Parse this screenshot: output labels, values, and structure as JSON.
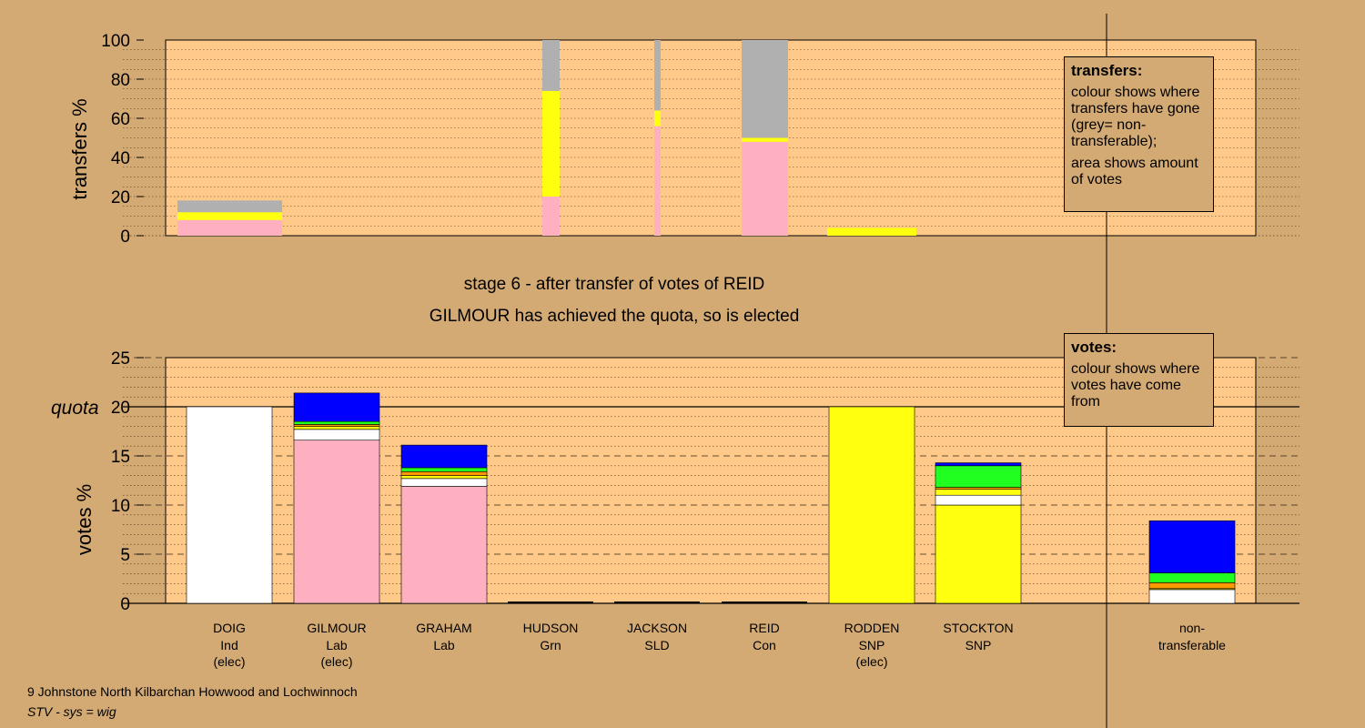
{
  "stage_title": "stage 6 - after transfer of votes of REID",
  "stage_subtitle": "GILMOUR has achieved the quota, so is elected",
  "footer": {
    "ward": "9 Johnstone North Kilbarchan Howwood and Lochwinnoch",
    "system": "STV - sys = wig"
  },
  "legend_transfers": {
    "title": "transfers:",
    "line1": "colour shows where transfers have gone (grey= non-transferable);",
    "line2": "area shows amount of votes"
  },
  "legend_votes": {
    "title": "votes:",
    "line1": "colour shows where votes have come from"
  },
  "colors": {
    "background": "#d4aa74",
    "plot_background": "#ffc98a",
    "Lab": "#ffb0c0",
    "SNP": "#ffff10",
    "Ind": "#ffffff",
    "Con": "#0000ff",
    "Grn": "#20ff20",
    "SLD": "#ff9900",
    "non_transferable": "#b0b0b0"
  },
  "chart_data": [
    {
      "type": "bar",
      "subtype": "stacked-transfers",
      "ylabel": "transfers %",
      "ylim": [
        0,
        100
      ],
      "yticks": [
        0,
        20,
        40,
        60,
        80,
        100
      ],
      "bars": [
        {
          "segments": [
            {
              "party": "Lab",
              "value": 8
            },
            {
              "party": "SNP",
              "value": 4
            },
            {
              "party": "non_transferable",
              "value": 6
            }
          ]
        },
        {
          "segments": [
            {
              "party": "Lab",
              "value": 20
            },
            {
              "party": "SNP",
              "value": 54
            },
            {
              "party": "non_transferable",
              "value": 26
            }
          ]
        },
        {
          "segments": [
            {
              "party": "Lab",
              "value": 56
            },
            {
              "party": "SNP",
              "value": 8
            },
            {
              "party": "non_transferable",
              "value": 36
            }
          ]
        },
        {
          "segments": [
            {
              "party": "Lab",
              "value": 48
            },
            {
              "party": "SNP",
              "value": 2
            },
            {
              "party": "non_transferable",
              "value": 50
            }
          ]
        },
        {
          "segments": [
            {
              "party": "SNP",
              "value": 4
            }
          ]
        }
      ]
    },
    {
      "type": "bar",
      "subtype": "stacked-votes",
      "ylabel": "votes %",
      "quota_label": "quota",
      "quota": 20,
      "ylim": [
        0,
        25
      ],
      "yticks": [
        0,
        5,
        10,
        15,
        20,
        25
      ],
      "candidates": [
        {
          "name": "DOIG",
          "party": "Ind",
          "status": "(elec)",
          "segments": [
            {
              "party": "Ind",
              "value": 20
            }
          ]
        },
        {
          "name": "GILMOUR",
          "party": "Lab",
          "status": "(elec)",
          "segments": [
            {
              "party": "Lab",
              "value": 16.6
            },
            {
              "party": "Ind",
              "value": 1.1
            },
            {
              "party": "SNP",
              "value": 0.3
            },
            {
              "party": "SLD",
              "value": 0.2
            },
            {
              "party": "Grn",
              "value": 0.3
            },
            {
              "party": "Con",
              "value": 2.9
            }
          ]
        },
        {
          "name": "GRAHAM",
          "party": "Lab",
          "status": "",
          "segments": [
            {
              "party": "Lab",
              "value": 11.9
            },
            {
              "party": "Ind",
              "value": 0.8
            },
            {
              "party": "SNP",
              "value": 0.3
            },
            {
              "party": "SLD",
              "value": 0.4
            },
            {
              "party": "Grn",
              "value": 0.4
            },
            {
              "party": "Con",
              "value": 2.3
            }
          ]
        },
        {
          "name": "HUDSON",
          "party": "Grn",
          "status": "",
          "segments": []
        },
        {
          "name": "JACKSON",
          "party": "SLD",
          "status": "",
          "segments": []
        },
        {
          "name": "REID",
          "party": "Con",
          "status": "",
          "segments": []
        },
        {
          "name": "RODDEN",
          "party": "SNP",
          "status": "(elec)",
          "segments": [
            {
              "party": "SNP",
              "value": 20
            }
          ]
        },
        {
          "name": "STOCKTON",
          "party": "SNP",
          "status": "",
          "segments": [
            {
              "party": "SNP",
              "value": 10
            },
            {
              "party": "Ind",
              "value": 1
            },
            {
              "party": "SNP",
              "value": 0.6
            },
            {
              "party": "SLD",
              "value": 0.2
            },
            {
              "party": "Grn",
              "value": 2.2
            },
            {
              "party": "Con",
              "value": 0.3
            }
          ]
        },
        {
          "name": "non-\ntransferable",
          "party": "",
          "status": "",
          "segments": [
            {
              "party": "Ind",
              "value": 1.4
            },
            {
              "party": "SNP",
              "value": 0.1
            },
            {
              "party": "SLD",
              "value": 0.6
            },
            {
              "party": "Grn",
              "value": 1
            },
            {
              "party": "Con",
              "value": 5.3
            }
          ]
        }
      ]
    }
  ]
}
